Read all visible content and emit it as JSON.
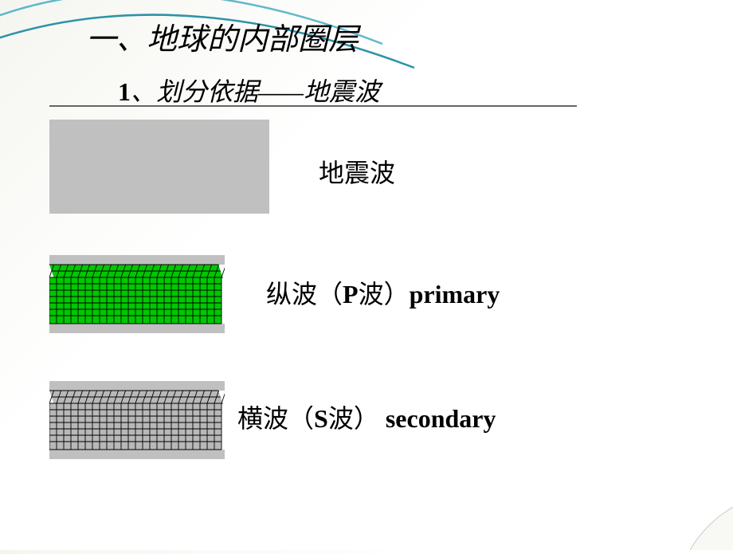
{
  "title": "一、地球的内部圈层",
  "subtitle_num": "1",
  "subtitle_text": "、划分依据——地震波",
  "label1": "地震波",
  "label2_cn": "纵波（",
  "label2_p": "P",
  "label2_cn2": "波）",
  "label2_en": "primary",
  "label3_cn": "横波（",
  "label3_s": "S",
  "label3_cn2": "波） ",
  "label3_en": "secondary",
  "colors": {
    "curve1": "#5fb8c9",
    "curve2": "#2d93a6",
    "block_bg": "#c0c0c0",
    "grid_green": "#00c800",
    "grid_gray": "#b8b8b8",
    "grid_line": "#000000",
    "underline": "#666666"
  },
  "block2": {
    "type": "grid-3d",
    "fill": "#00c800",
    "top_band": "#c0c0c0",
    "bottom_band": "#c0c0c0",
    "cols": 24,
    "rows": 7
  },
  "block3": {
    "type": "grid-3d",
    "fill": "#b8b8b8",
    "top_band": "#c0c0c0",
    "bottom_band": "#c0c0c0",
    "cols": 24,
    "rows": 7
  },
  "curves": {
    "stroke_width": 2.5,
    "paths": [
      "M -60 110 Q 180 -55 540 85",
      "M -60 130 Q 210 -25 580 115"
    ]
  }
}
